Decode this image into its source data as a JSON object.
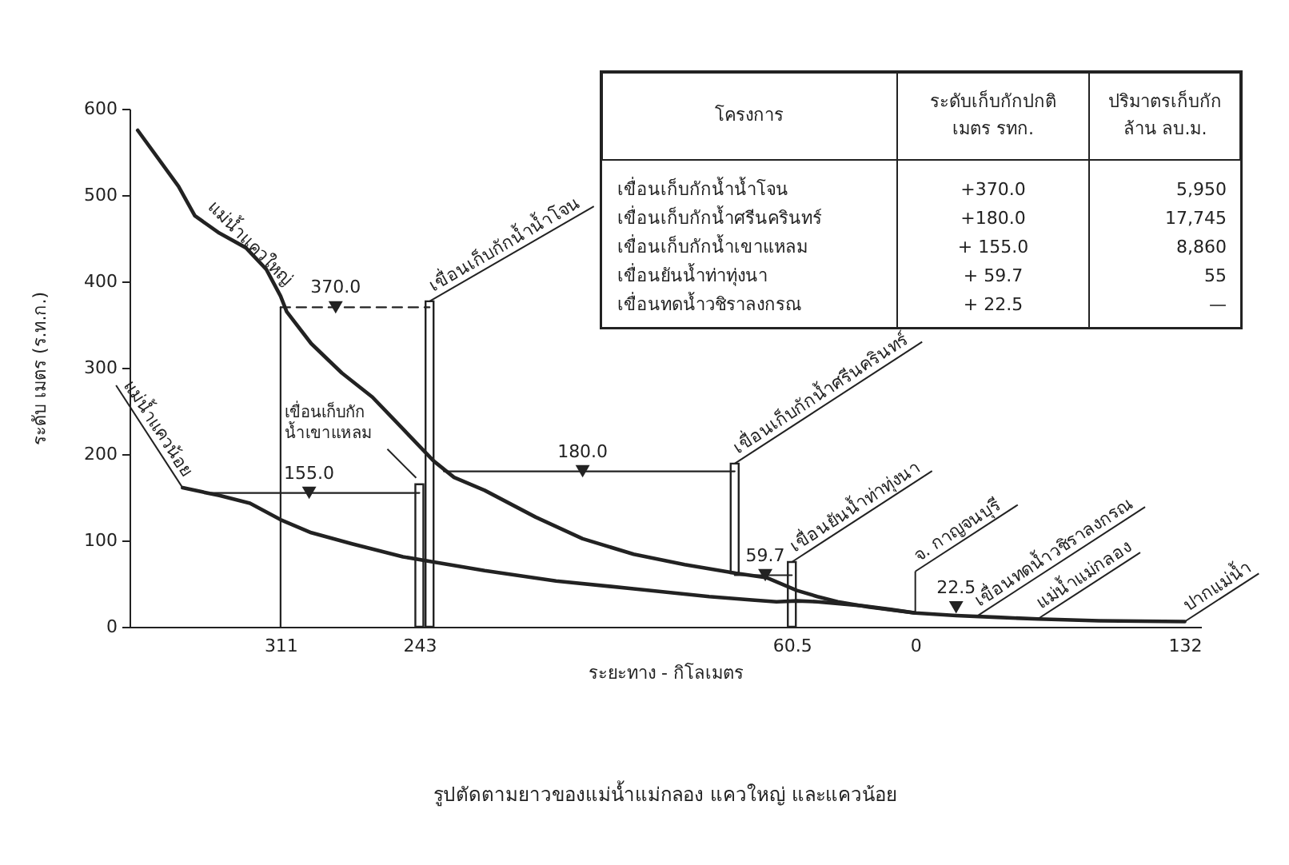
{
  "chart_data": [
    {
      "type": "line",
      "title": "รูปตัดตามยาวของแม่น้ำแม่กลอง แควใหญ่ และแควน้อย",
      "xlabel": "ระยะทาง - กิโลเมตร",
      "ylabel": "ระดับ เมตร (ร.ท.ก.)",
      "xlim": [
        385,
        -140
      ],
      "xticks": [
        311,
        243,
        60.5,
        0,
        {
          "value": -132,
          "label": "132"
        }
      ],
      "ylim": [
        0,
        600
      ],
      "yticks": [
        0,
        100,
        200,
        300,
        400,
        500,
        600
      ],
      "series": [
        {
          "name": "แม่น้ำแควใหญ่",
          "color": "#222222",
          "x": [
            381,
            361,
            353,
            341,
            328,
            318,
            311,
            308,
            296,
            281,
            266,
            251,
            236,
            226,
            211,
            186,
            163,
            138,
            113,
            88,
            73,
            58,
            48,
            38,
            23,
            10,
            0,
            -20,
            -40,
            -60,
            -90,
            -132
          ],
          "values": [
            575,
            510,
            476,
            456,
            439,
            414,
            383,
            365,
            328,
            294,
            266,
            229,
            192,
            173,
            158,
            127,
            102,
            84,
            72,
            62,
            57,
            42,
            35,
            29,
            23,
            19,
            16,
            13,
            11,
            9,
            7,
            6
          ]
        },
        {
          "name": "แม่น้ำแควน้อย",
          "color": "#222222",
          "x": [
            359,
            341,
            326,
            311,
            296,
            276,
            261,
            251,
            236,
            211,
            176,
            138,
            101,
            80,
            68,
            58,
            48,
            38,
            25,
            12,
            0
          ],
          "values": [
            161,
            152,
            143,
            124,
            109,
            96,
            87,
            81,
            75,
            65,
            53,
            44,
            35,
            31,
            29,
            30,
            29,
            27,
            24,
            20,
            16
          ]
        },
        {
          "type": "line",
          "color": "#222222",
          "line_style": "dashed",
          "x": [
            311,
            238
          ],
          "values": [
            370,
            370
          ]
        },
        {
          "type": "line",
          "color": "#222222",
          "x": [
            311,
            311
          ],
          "values": [
            0,
            370
          ]
        },
        {
          "type": "line",
          "color": "#222222",
          "x": [
            231,
            88.5
          ],
          "values": [
            180,
            180
          ]
        },
        {
          "type": "line",
          "color": "#222222",
          "x": [
            345,
            243
          ],
          "values": [
            155,
            155
          ]
        },
        {
          "type": "line",
          "color": "#222222",
          "x": [
            88.5,
            60.5
          ],
          "values": [
            59.7,
            59.7
          ]
        },
        {
          "type": "bar",
          "color": "#222222",
          "x": [
            243,
            238,
            88.5,
            60.5
          ],
          "base": [
            0,
            0,
            62,
            0
          ],
          "values": [
            165,
            377,
            127,
            75
          ]
        },
        {
          "type": "scatter",
          "marker": "triangle",
          "color": "#222222",
          "x": [
            284,
            163,
            297,
            73.5,
            -20
          ],
          "values": [
            370,
            180,
            155,
            59.7,
            22.5
          ],
          "value_labels": [
            "370.0",
            "180.0",
            "155.0",
            "59.7",
            "22.5"
          ]
        }
      ],
      "annotations": [
        {
          "text": "เขื่อนเก็บกักน้ำน้ำโจน",
          "x": 238,
          "y": 377
        },
        {
          "text": "เขื่อนเก็บกักน้ำเขาแหลม",
          "x": 243,
          "y": 165
        },
        {
          "text": "เขื่อนเก็บกักน้ำศรีนครินทร์",
          "x": 88.5,
          "y": 189
        },
        {
          "text": "เขื่อนยันน้ำท่าทุ่งนา",
          "x": 60.5,
          "y": 75
        },
        {
          "text": "จ. กาญจนบุรี",
          "x": 0,
          "y": 16
        },
        {
          "text": "เขื่อนทดน้ำวชิราลงกรณ",
          "x": -30,
          "y": 12
        },
        {
          "text": "แม่น้ำแม่กลอง",
          "x": -60,
          "y": 9
        },
        {
          "text": "ปากแม่น้ำ",
          "x": -132,
          "y": 6
        }
      ]
    },
    {
      "type": "other",
      "xlabel": "โครงการ",
      "categories": [
        "เขื่อนเก็บกักน้ำน้ำโจน",
        "เขื่อนเก็บกักน้ำศรีนครินทร์",
        "เขื่อนเก็บกักน้ำเขาแหลม",
        "เขื่อนยันน้ำท่าทุ่งนา",
        "เขื่อนทดน้ำวชิราลงกรณ"
      ],
      "series": [
        {
          "name": "ระดับเก็บกักปกติ\nเมตร รทก.",
          "values": [
            370.0,
            180.0,
            155.0,
            59.7,
            22.5
          ],
          "value_labels": [
            "+370.0",
            "+180.0",
            "+ 155.0",
            "+ 59.7",
            "+ 22.5"
          ]
        },
        {
          "name": "ปริมาตรเก็บกัก\nล้าน ลบ.ม.",
          "values": [
            5950,
            17745,
            8860,
            55,
            null
          ],
          "value_labels": [
            "5,950",
            "17,745",
            "8,860",
            "55",
            "—"
          ]
        }
      ]
    }
  ]
}
